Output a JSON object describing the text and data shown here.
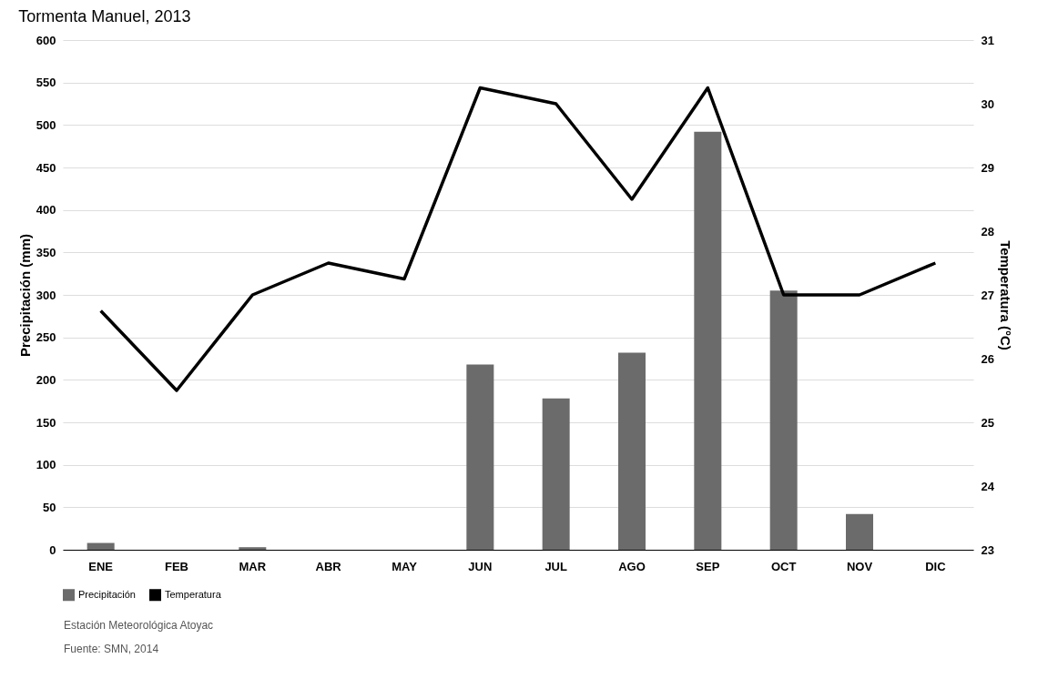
{
  "chart_data": {
    "type": "bar",
    "title": "Tormenta Manuel, 2013",
    "ylabel": "Precipitación (mm)",
    "y2label": "Temperatura (°C)",
    "categories": [
      "ENE",
      "FEB",
      "MAR",
      "ABR",
      "MAY",
      "JUN",
      "JUL",
      "AGO",
      "SEP",
      "OCT",
      "NOV",
      "DIC"
    ],
    "series": [
      {
        "name": "Precipitación",
        "color": "#6b6b6b",
        "values": [
          8,
          0,
          3,
          0,
          0,
          218,
          178,
          232,
          492,
          305,
          42,
          0
        ]
      },
      {
        "name": "Temperatura",
        "type": "line",
        "axis": "y2",
        "color": "#000000",
        "values": [
          26.75,
          25.5,
          27,
          27.5,
          27.25,
          30.25,
          30,
          28.5,
          30.25,
          27,
          27,
          27.5
        ]
      }
    ],
    "ylim": [
      0,
      600
    ],
    "yticks": [
      0,
      50,
      100,
      150,
      200,
      250,
      300,
      350,
      400,
      450,
      500,
      550,
      600
    ],
    "y2lim": [
      23,
      31
    ],
    "y2ticks": [
      23,
      24,
      25,
      26,
      27,
      28,
      29,
      30,
      31
    ],
    "grid": "y",
    "legend": "bottom",
    "marker": "none",
    "line_style": "solid",
    "annotations": [
      "Estación Meteorológica Atoyac",
      "Fuente: SMN, 2014"
    ]
  }
}
